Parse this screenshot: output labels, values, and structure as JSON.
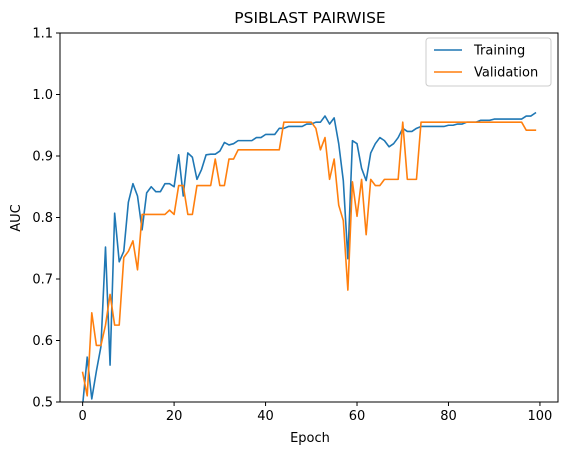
{
  "chart_data": {
    "type": "line",
    "title": "PSIBLAST PAIRWISE",
    "xlabel": "Epoch",
    "ylabel": "AUC",
    "xlim": [
      -4.95,
      103.95
    ],
    "ylim": [
      0.5,
      1.1
    ],
    "xticks": [
      0,
      20,
      40,
      60,
      80,
      100
    ],
    "yticks": [
      0.5,
      0.6,
      0.7,
      0.8,
      0.9,
      1.0,
      1.1
    ],
    "ytick_labels": [
      "0.5",
      "0.6",
      "0.7",
      "0.8",
      "0.9",
      "1.0",
      "1.1"
    ],
    "grid": false,
    "legend_position": "upper right",
    "series": [
      {
        "name": "Training",
        "color": "#1f77b4",
        "x": [
          0,
          1,
          2,
          3,
          4,
          5,
          6,
          7,
          8,
          9,
          10,
          11,
          12,
          13,
          14,
          15,
          16,
          17,
          18,
          19,
          20,
          21,
          22,
          23,
          24,
          25,
          26,
          27,
          28,
          29,
          30,
          31,
          32,
          33,
          34,
          35,
          36,
          37,
          38,
          39,
          40,
          41,
          42,
          43,
          44,
          45,
          46,
          47,
          48,
          49,
          50,
          51,
          52,
          53,
          54,
          55,
          56,
          57,
          58,
          59,
          60,
          61,
          62,
          63,
          64,
          65,
          66,
          67,
          68,
          69,
          70,
          71,
          72,
          73,
          74,
          75,
          76,
          77,
          78,
          79,
          80,
          81,
          82,
          83,
          84,
          85,
          86,
          87,
          88,
          89,
          90,
          91,
          92,
          93,
          94,
          95,
          96,
          97,
          98,
          99
        ],
        "values": [
          0.495,
          0.573,
          0.505,
          0.55,
          0.59,
          0.752,
          0.56,
          0.807,
          0.728,
          0.745,
          0.825,
          0.855,
          0.835,
          0.78,
          0.84,
          0.85,
          0.842,
          0.842,
          0.855,
          0.855,
          0.85,
          0.902,
          0.835,
          0.905,
          0.898,
          0.862,
          0.878,
          0.902,
          0.903,
          0.903,
          0.908,
          0.922,
          0.918,
          0.92,
          0.925,
          0.925,
          0.925,
          0.925,
          0.93,
          0.93,
          0.935,
          0.935,
          0.935,
          0.945,
          0.945,
          0.948,
          0.948,
          0.948,
          0.948,
          0.952,
          0.952,
          0.955,
          0.955,
          0.965,
          0.952,
          0.962,
          0.92,
          0.86,
          0.733,
          0.925,
          0.92,
          0.88,
          0.86,
          0.905,
          0.92,
          0.93,
          0.925,
          0.915,
          0.92,
          0.93,
          0.945,
          0.94,
          0.94,
          0.945,
          0.948,
          0.948,
          0.948,
          0.948,
          0.948,
          0.948,
          0.95,
          0.95,
          0.952,
          0.952,
          0.955,
          0.955,
          0.955,
          0.958,
          0.958,
          0.958,
          0.96,
          0.96,
          0.96,
          0.96,
          0.96,
          0.96,
          0.96,
          0.965,
          0.965,
          0.97
        ]
      },
      {
        "name": "Validation",
        "color": "#ff7f0e",
        "x": [
          0,
          1,
          2,
          3,
          4,
          5,
          6,
          7,
          8,
          9,
          10,
          11,
          12,
          13,
          14,
          15,
          16,
          17,
          18,
          19,
          20,
          21,
          22,
          23,
          24,
          25,
          26,
          27,
          28,
          29,
          30,
          31,
          32,
          33,
          34,
          35,
          36,
          37,
          38,
          39,
          40,
          41,
          42,
          43,
          44,
          45,
          46,
          47,
          48,
          49,
          50,
          51,
          52,
          53,
          54,
          55,
          56,
          57,
          58,
          59,
          60,
          61,
          62,
          63,
          64,
          65,
          66,
          67,
          68,
          69,
          70,
          71,
          72,
          73,
          74,
          75,
          76,
          77,
          78,
          79,
          80,
          81,
          82,
          83,
          84,
          85,
          86,
          87,
          88,
          89,
          90,
          91,
          92,
          93,
          94,
          95,
          96,
          97,
          98,
          99
        ],
        "values": [
          0.548,
          0.51,
          0.645,
          0.592,
          0.592,
          0.625,
          0.675,
          0.625,
          0.625,
          0.735,
          0.745,
          0.762,
          0.715,
          0.805,
          0.805,
          0.805,
          0.805,
          0.805,
          0.805,
          0.812,
          0.805,
          0.852,
          0.852,
          0.805,
          0.805,
          0.852,
          0.852,
          0.852,
          0.852,
          0.895,
          0.852,
          0.852,
          0.895,
          0.895,
          0.91,
          0.91,
          0.91,
          0.91,
          0.91,
          0.91,
          0.91,
          0.91,
          0.91,
          0.91,
          0.955,
          0.955,
          0.955,
          0.955,
          0.955,
          0.955,
          0.955,
          0.945,
          0.91,
          0.93,
          0.862,
          0.895,
          0.82,
          0.795,
          0.682,
          0.858,
          0.802,
          0.862,
          0.772,
          0.862,
          0.852,
          0.852,
          0.862,
          0.862,
          0.862,
          0.862,
          0.955,
          0.862,
          0.862,
          0.862,
          0.955,
          0.955,
          0.955,
          0.955,
          0.955,
          0.955,
          0.955,
          0.955,
          0.955,
          0.955,
          0.955,
          0.955,
          0.955,
          0.955,
          0.955,
          0.955,
          0.955,
          0.955,
          0.955,
          0.955,
          0.955,
          0.955,
          0.955,
          0.942,
          0.942,
          0.942
        ]
      }
    ]
  }
}
